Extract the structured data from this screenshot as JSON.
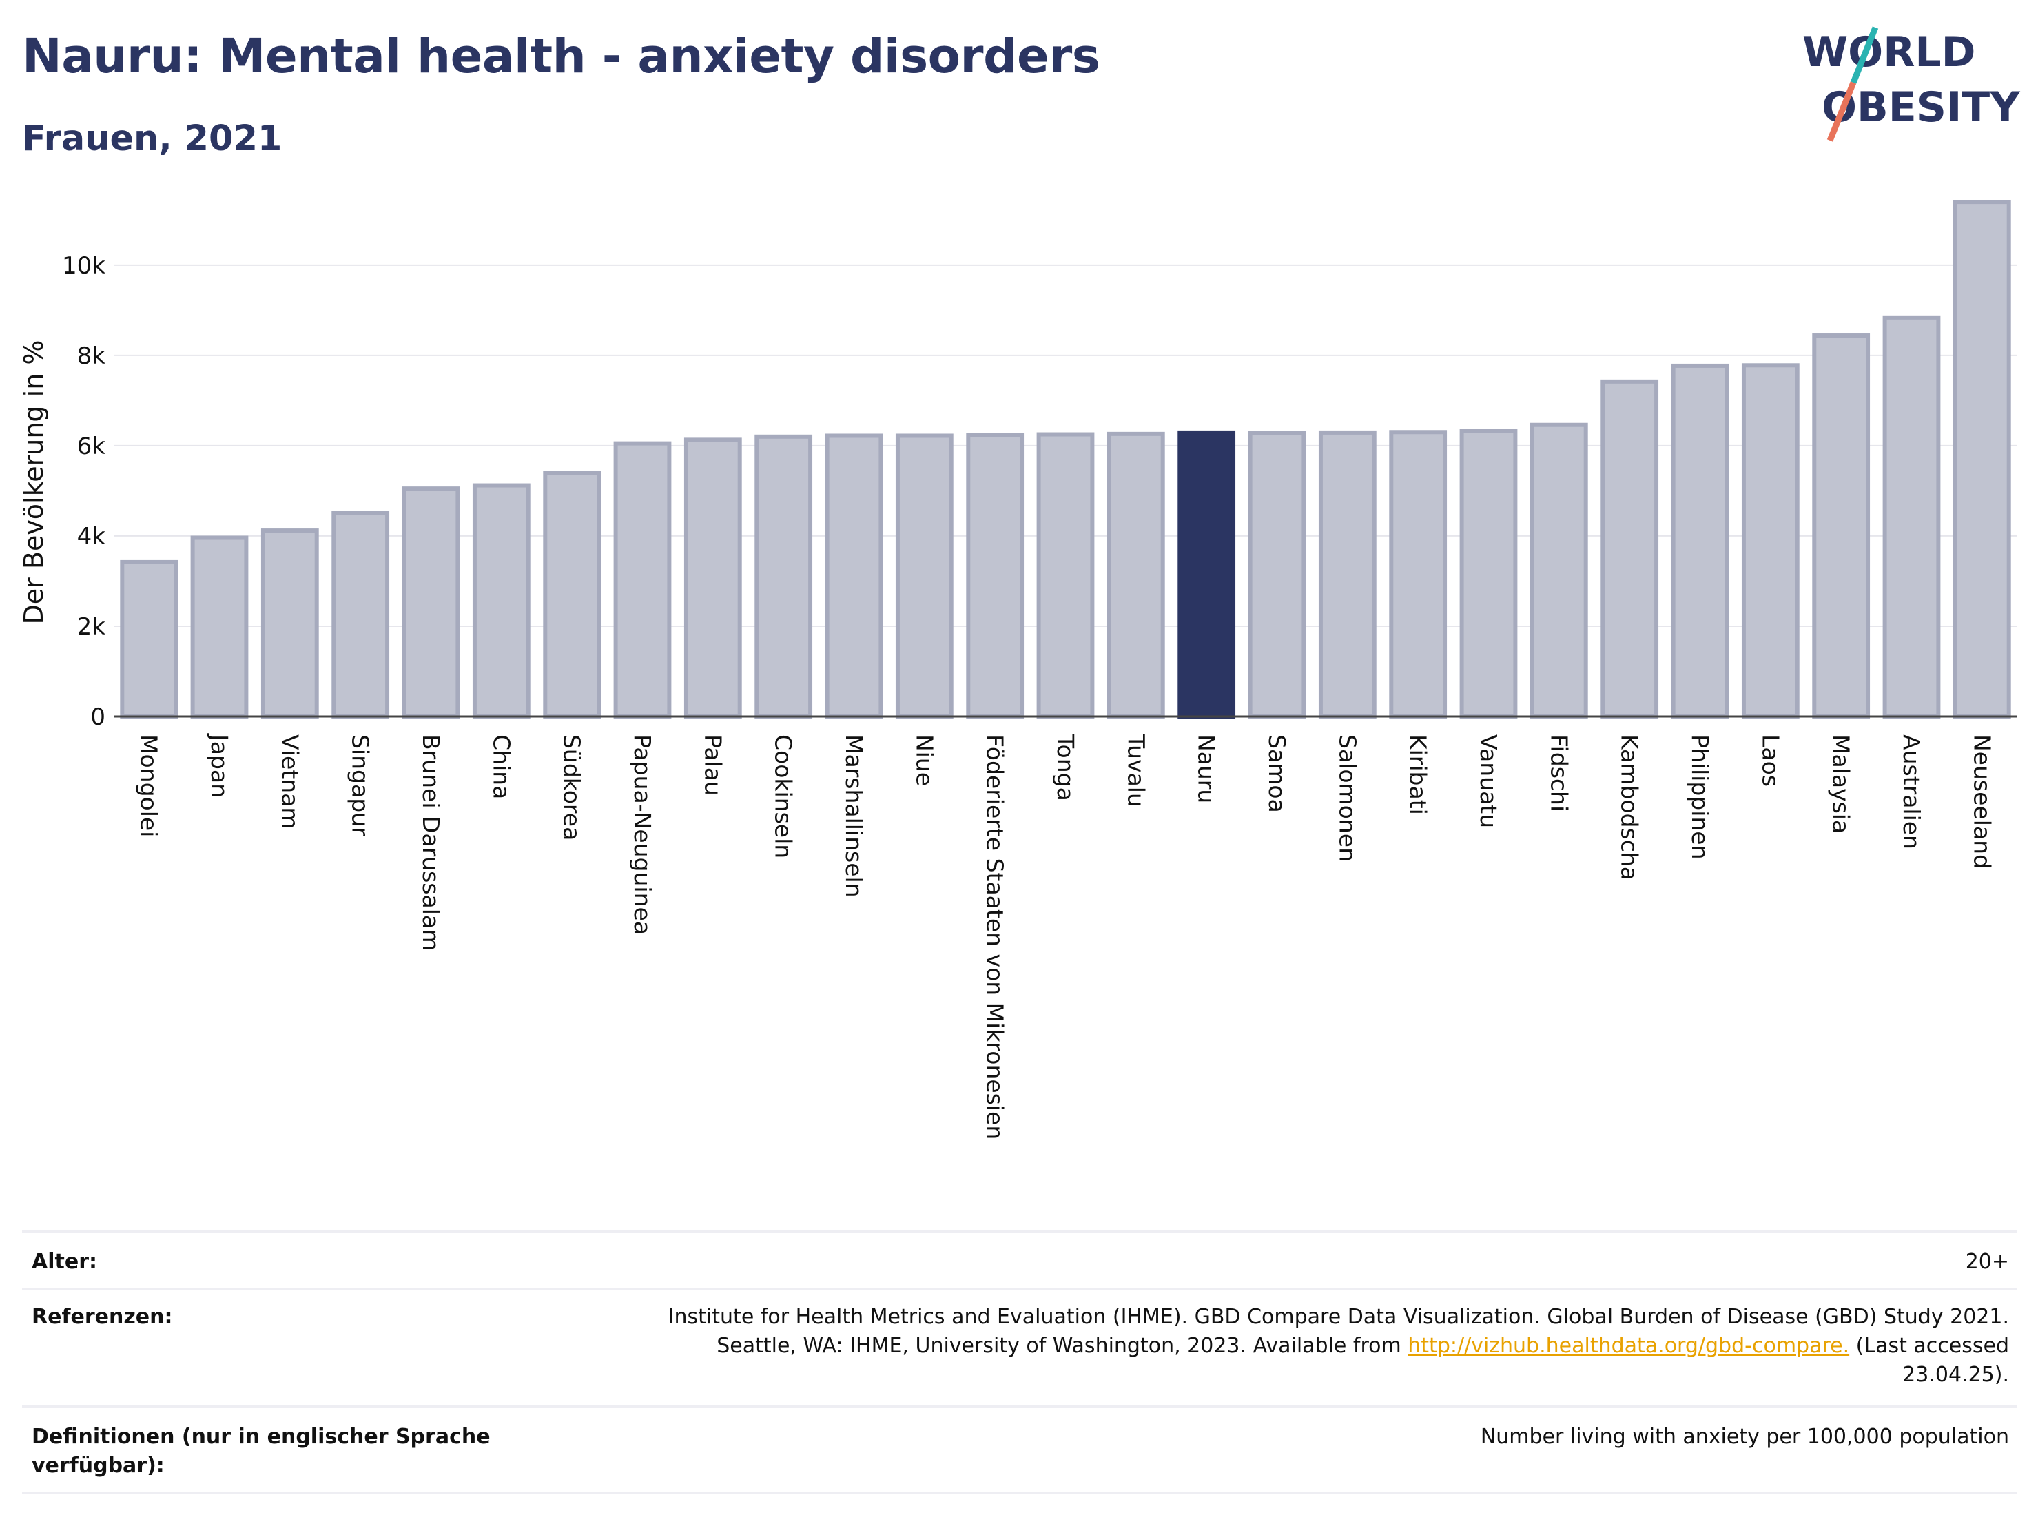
{
  "header": {
    "title": "Nauru: Mental health - anxiety disorders",
    "subtitle": "Frauen, 2021"
  },
  "logo": {
    "line1": "WORLD",
    "line2": "OBESITY",
    "colors": {
      "text": "#2b3562",
      "slash_top": "#2ab3b1",
      "slash_bottom": "#e8735a"
    }
  },
  "colors": {
    "bar_default": "#c0c3d0",
    "bar_default_stroke": "#a6aabd",
    "bar_highlight": "#2b3562",
    "grid": "#e6e6ec",
    "axis": "#444444"
  },
  "chart_data": {
    "type": "bar",
    "ylabel": "Der Bevölkerung in %",
    "ylim": [
      0,
      11600
    ],
    "yticks": [
      0,
      2000,
      4000,
      6000,
      8000,
      10000
    ],
    "ytick_labels": [
      "0",
      "2k",
      "4k",
      "6k",
      "8k",
      "10k"
    ],
    "grid": true,
    "highlight": "Nauru",
    "categories": [
      "Mongolei",
      "Japan",
      "Vietnam",
      "Singapur",
      "Brunei Darussalam",
      "China",
      "Südkorea",
      "Papua-Neuguinea",
      "Palau",
      "Cookinseln",
      "Marshallinseln",
      "Niue",
      "Föderierte Staaten von Mikronesien",
      "Tonga",
      "Tuvalu",
      "Nauru",
      "Samoa",
      "Salomonen",
      "Kiribati",
      "Vanuatu",
      "Fidschi",
      "Kambodscha",
      "Philippinen",
      "Laos",
      "Malaysia",
      "Australien",
      "Neuseeland"
    ],
    "values": [
      3420,
      3960,
      4120,
      4510,
      5050,
      5120,
      5390,
      6050,
      6130,
      6200,
      6220,
      6220,
      6230,
      6250,
      6260,
      6290,
      6280,
      6290,
      6300,
      6320,
      6460,
      7420,
      7770,
      7780,
      8440,
      8840,
      11400
    ]
  },
  "meta": {
    "age_label": "Alter:",
    "age_value": "20+",
    "ref_label": "Referenzen:",
    "ref_text_1": "Institute for Health Metrics and Evaluation (IHME). GBD Compare Data Visualization. Global Burden of Disease (GBD) Study 2021.",
    "ref_text_2a": "Seattle, WA: IHME, University of Washington, 2023. Available from ",
    "ref_link": "http://vizhub.healthdata.org/gbd-compare.",
    "ref_text_2b": " (Last accessed",
    "ref_text_3": "23.04.25).",
    "def_label": "Definitionen (nur in englischer Sprache verfügbar):",
    "def_value": "Number living with anxiety per 100,000 population"
  }
}
